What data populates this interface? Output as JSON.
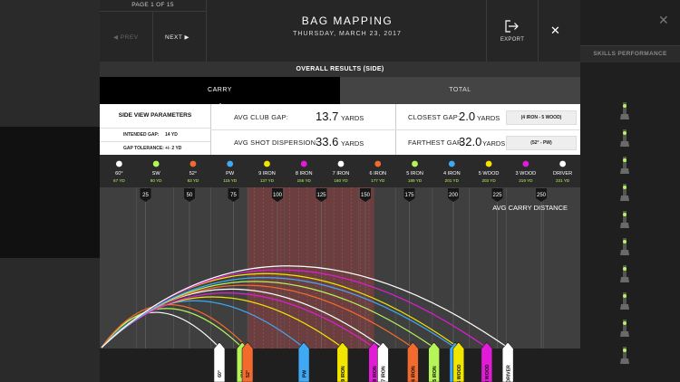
{
  "header": {
    "page_indicator": "PAGE 1 OF 15",
    "prev_label": "◀ PREV",
    "next_label": "NEXT ▶",
    "title": "BAG MAPPING",
    "date": "THURSDAY, MARCH 23, 2017",
    "export_label": "EXPORT",
    "close_glyph": "✕"
  },
  "background": {
    "close_glyph": "✕",
    "tab_label": "SKILLS PERFORMANCE"
  },
  "section_title": "OVERALL RESULTS (SIDE)",
  "tabs": [
    {
      "label": "CARRY",
      "active": true
    },
    {
      "label": "TOTAL",
      "active": false
    }
  ],
  "parameters": {
    "title": "SIDE VIEW PARAMETERS",
    "intended_gap_label": "INTENDED GAP:",
    "intended_gap_value": "14 YD",
    "gap_tolerance_label": "GAP TOLERANCE:",
    "gap_tolerance_value": "+/- 2 YD"
  },
  "stats": {
    "avg_club_gap": {
      "label": "AVG CLUB GAP:",
      "value": "13.7",
      "unit": "YARDS"
    },
    "avg_shot_dispersion": {
      "label": "AVG SHOT DISPERSION:",
      "value": "33.6",
      "unit": "YARDS"
    },
    "closest_gap": {
      "label": "CLOSEST GAP:",
      "value": "2.0",
      "unit": "YARDS",
      "clubs": "(4 IRON - 5 WOOD)"
    },
    "farthest_gap": {
      "label": "FARTHEST GAP:",
      "value": "32.0",
      "unit": "YARDS",
      "clubs": "(52° - PW)"
    }
  },
  "chart_data": {
    "type": "line",
    "annotation": "AVG CARRY DISTANCE",
    "x_ticks": [
      25,
      50,
      75,
      100,
      125,
      150,
      175,
      200,
      225,
      250
    ],
    "xlim": [
      0,
      275
    ],
    "clubs": [
      {
        "name": "60°",
        "carry_label": "67 YD",
        "carry": 67,
        "color": "#ffffff"
      },
      {
        "name": "SW",
        "carry_label": "80 YD",
        "carry": 80,
        "color": "#b5f55a"
      },
      {
        "name": "52°",
        "carry_label": "83 YD",
        "carry": 83,
        "color": "#f26a2e"
      },
      {
        "name": "PW",
        "carry_label": "115 YD",
        "carry": 115,
        "color": "#3fa9f5"
      },
      {
        "name": "9 IRON",
        "carry_label": "137 YD",
        "carry": 137,
        "color": "#f2e600"
      },
      {
        "name": "8 IRON",
        "carry_label": "155 YD",
        "carry": 155,
        "color": "#e21bd6"
      },
      {
        "name": "7 IRON",
        "carry_label": "160 YD",
        "carry": 160,
        "color": "#ffffff"
      },
      {
        "name": "6 IRON",
        "carry_label": "177 YD",
        "carry": 177,
        "color": "#f26a2e"
      },
      {
        "name": "5 IRON",
        "carry_label": "189 YD",
        "carry": 189,
        "color": "#b5f55a"
      },
      {
        "name": "4 IRON",
        "carry_label": "201 YD",
        "carry": 201,
        "color": "#3fa9f5"
      },
      {
        "name": "5 WOOD",
        "carry_label": "203 YD",
        "carry": 203,
        "color": "#f2e600"
      },
      {
        "name": "3 WOOD",
        "carry_label": "219 YD",
        "carry": 219,
        "color": "#e21bd6"
      },
      {
        "name": "DRIVER",
        "carry_label": "231 YD",
        "carry": 231,
        "color": "#ffffff"
      }
    ],
    "highlight_range": [
      83,
      155
    ],
    "highlight_color": "#b24040"
  }
}
